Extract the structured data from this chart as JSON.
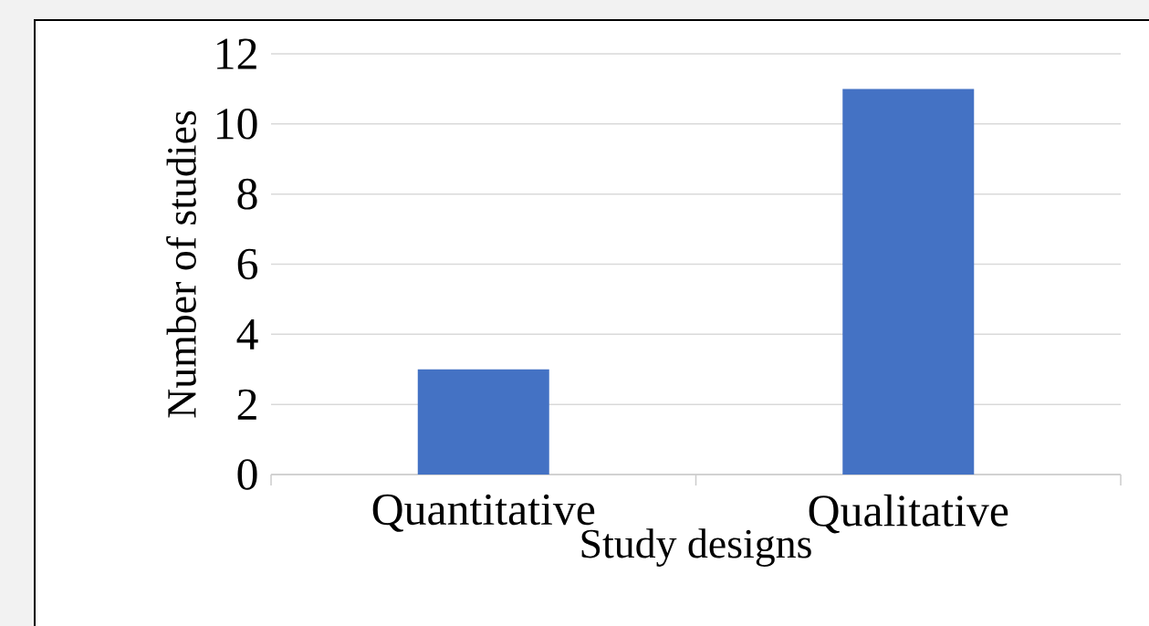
{
  "chart_data": {
    "type": "bar",
    "xlabel": "Study designs",
    "ylabel": "Number of studies",
    "categories": [
      "Quantitative",
      "Qualitative"
    ],
    "values": [
      3,
      11
    ],
    "color": "#4472c4",
    "ylim": [
      0,
      12
    ],
    "yticks": [
      0,
      2,
      4,
      6,
      8,
      10,
      12
    ],
    "grid": "y"
  }
}
